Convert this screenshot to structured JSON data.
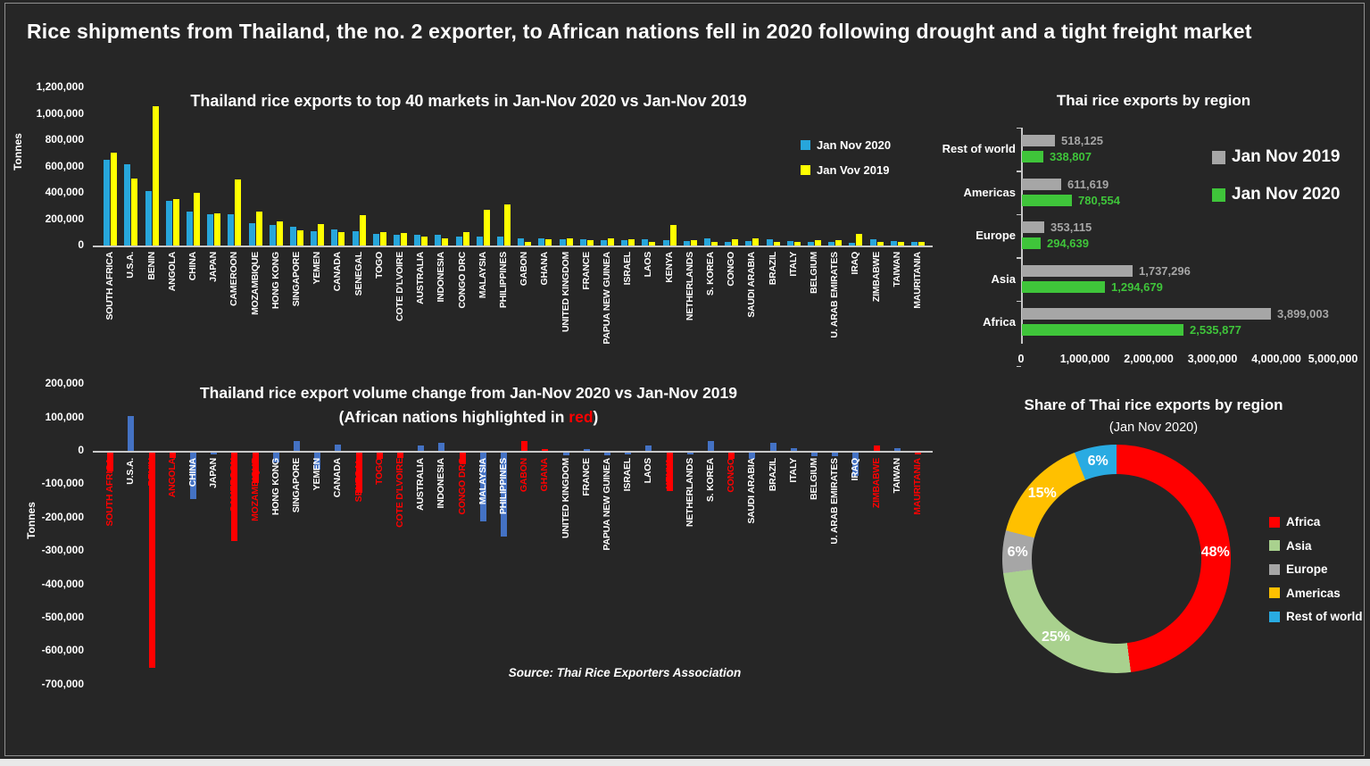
{
  "page": {
    "title": "Rice shipments from Thailand, the no. 2 exporter, to African nations fell in 2020 following drought and a tight freight market",
    "source_note": "Source: Thai Rice Exporters Association"
  },
  "colors": {
    "background": "#262626",
    "bar_2020_cyan": "#27A6DB",
    "bar_2019_yellow": "#FFFF00",
    "diff_blue": "#4472C4",
    "african_red": "#FF0000",
    "region_gray": "#A6A6A6",
    "region_green": "#3FC53A",
    "asia_green": "#A9D18E",
    "americas_gold": "#FFC000",
    "restofworld_blue": "#29ABE2",
    "axis": "#C8C8C8"
  },
  "chart_data": [
    {
      "id": "top40",
      "type": "bar",
      "title": "Thailand rice exports to top 40 markets in Jan-Nov 2020 vs Jan-Nov 2019",
      "ylabel": "Tonnes",
      "ylim": [
        0,
        1200000
      ],
      "ytick_step": 200000,
      "legend": [
        {
          "label": "Jan Nov 2020",
          "color": "#27A6DB"
        },
        {
          "label": "Jan Vov 2019",
          "color": "#FFFF00"
        }
      ],
      "categories": [
        "SOUTH AFRICA",
        "U.S.A.",
        "BENIN",
        "ANGOLA",
        "CHINA",
        "JAPAN",
        "CAMEROON",
        "MOZAMBIQUE",
        "HONG KONG",
        "SINGAPORE",
        "YEMEN",
        "CANADA",
        "SENEGAL",
        "TOGO",
        "COTE D'LVOIRE",
        "AUSTRALIA",
        "INDONESIA",
        "CONGO DRC",
        "MALAYSIA",
        "PHILIPPINES",
        "GABON",
        "GHANA",
        "UNITED KINGDOM",
        "FRANCE",
        "PAPUA NEW GUINEA",
        "ISRAEL",
        "LAOS",
        "KENYA",
        "NETHERLANDS",
        "S. KOREA",
        "CONGO",
        "SAUDI ARABIA",
        "BRAZIL",
        "ITALY",
        "BELGIUM",
        "U. ARAB EMIRATES",
        "IRAQ",
        "ZIMBABWE",
        "TAIWAN",
        "MAURITANIA"
      ],
      "series": [
        {
          "name": "Jan Nov 2020",
          "values": [
            650000,
            615000,
            415000,
            340000,
            260000,
            240000,
            235000,
            170000,
            155000,
            145000,
            110000,
            120000,
            110000,
            85000,
            80000,
            80000,
            80000,
            65000,
            65000,
            65000,
            55000,
            55000,
            48000,
            45000,
            43000,
            40000,
            45000,
            40000,
            35000,
            55000,
            30000,
            35000,
            50000,
            35000,
            30000,
            30000,
            20000,
            45000,
            33000,
            28000
          ]
        },
        {
          "name": "Jan Vov 2019",
          "values": [
            705000,
            510000,
            1060000,
            355000,
            400000,
            245000,
            500000,
            260000,
            185000,
            115000,
            160000,
            100000,
            230000,
            105000,
            95000,
            65000,
            55000,
            100000,
            270000,
            315000,
            25000,
            50000,
            55000,
            42000,
            52000,
            45000,
            30000,
            155000,
            40000,
            25000,
            50000,
            55000,
            25000,
            27000,
            42000,
            40000,
            90000,
            30000,
            25000,
            30000
          ]
        }
      ]
    },
    {
      "id": "change",
      "type": "bar",
      "title": "Thailand rice export volume change from Jan-Nov 2020 vs Jan-Nov 2019",
      "subtitle_prefix": "(African nations highlighted in ",
      "subtitle_highlight": "red",
      "subtitle_suffix": ")",
      "ylabel": "Tonnes",
      "ylim": [
        -700000,
        200000
      ],
      "ytick_step": 100000,
      "categories": [
        "SOUTH AFRICA",
        "U.S.A.",
        "BENIN",
        "ANGOLA",
        "CHINA",
        "JAPAN",
        "CAMEROON",
        "MOZAMBIQUE",
        "HONG KONG",
        "SINGAPORE",
        "YEMEN",
        "CANADA",
        "SENEGAL",
        "TOGO",
        "COTE D'LVOIRE",
        "AUSTRALIA",
        "INDONESIA",
        "CONGO DRC",
        "MALAYSIA",
        "PHILIPPINES",
        "GABON",
        "GHANA",
        "UNITED KINGDOM",
        "FRANCE",
        "PAPUA NEW GUINEA",
        "ISRAEL",
        "LAOS",
        "KENYA",
        "NETHERLANDS",
        "S. KOREA",
        "CONGO",
        "SAUDI ARABIA",
        "BRAZIL",
        "ITALY",
        "BELGIUM",
        "U. ARAB EMIRATES",
        "IRAQ",
        "ZIMBABWE",
        "TAIWAN",
        "MAURITANIA"
      ],
      "values": [
        -55000,
        105000,
        -645000,
        -15000,
        -140000,
        -5000,
        -265000,
        -90000,
        -30000,
        30000,
        -50000,
        20000,
        -120000,
        -20000,
        -15000,
        15000,
        25000,
        -35000,
        -205000,
        -250000,
        30000,
        5000,
        -7000,
        3000,
        -9000,
        -5000,
        15000,
        -115000,
        -5000,
        30000,
        -20000,
        -20000,
        25000,
        8000,
        -12000,
        -10000,
        -70000,
        15000,
        8000,
        -2000
      ],
      "african": [
        true,
        false,
        true,
        true,
        false,
        false,
        true,
        true,
        false,
        false,
        false,
        false,
        true,
        true,
        true,
        false,
        false,
        true,
        false,
        false,
        true,
        true,
        false,
        false,
        false,
        false,
        false,
        true,
        false,
        false,
        true,
        false,
        false,
        false,
        false,
        false,
        false,
        true,
        false,
        true
      ]
    },
    {
      "id": "by_region",
      "type": "bar",
      "orientation": "horizontal",
      "title": "Thai rice exports by region",
      "categories": [
        "Rest of world",
        "Americas",
        "Europe",
        "Asia",
        "Africa"
      ],
      "series": [
        {
          "name": "Jan Nov 2019",
          "color": "#A6A6A6",
          "values": [
            518125,
            611619,
            353115,
            1737296,
            3899003
          ]
        },
        {
          "name": "Jan Nov 2020",
          "color": "#3FC53A",
          "values": [
            338807,
            780554,
            294639,
            1294679,
            2535877
          ]
        }
      ],
      "xlim": [
        0,
        5000000
      ],
      "xtick_step": 1000000
    },
    {
      "id": "share",
      "type": "pie",
      "title": "Share of Thai rice exports by region",
      "subtitle": "(Jan Nov 2020)",
      "slices": [
        {
          "label": "Africa",
          "pct": 48,
          "color": "#FF0000"
        },
        {
          "label": "Asia",
          "pct": 25,
          "color": "#A9D18E"
        },
        {
          "label": "Europe",
          "pct": 6,
          "color": "#A6A6A6"
        },
        {
          "label": "Americas",
          "pct": 15,
          "color": "#FFC000"
        },
        {
          "label": "Rest of world",
          "pct": 6,
          "color": "#29ABE2"
        }
      ],
      "legend_position": "right"
    }
  ]
}
